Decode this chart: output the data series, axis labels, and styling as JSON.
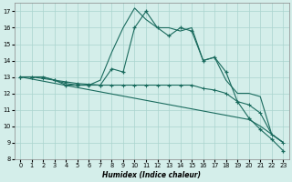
{
  "xlabel": "Humidex (Indice chaleur)",
  "x_values": [
    0,
    1,
    2,
    3,
    4,
    5,
    6,
    7,
    8,
    9,
    10,
    11,
    12,
    13,
    14,
    15,
    16,
    17,
    18,
    19,
    20,
    21,
    22,
    23
  ],
  "line1_jagged": [
    13.0,
    13.0,
    13.0,
    12.8,
    12.5,
    12.5,
    12.5,
    12.5,
    13.5,
    13.3,
    16.0,
    17.0,
    16.0,
    15.5,
    16.0,
    15.8,
    14.0,
    14.2,
    13.3,
    11.5,
    10.5,
    9.8,
    9.2,
    8.5
  ],
  "line2_triangle": [
    13.0,
    13.0,
    13.0,
    12.8,
    12.6,
    12.5,
    12.5,
    12.8,
    14.5,
    16.0,
    17.2,
    16.5,
    16.0,
    16.0,
    15.8,
    16.0,
    14.0,
    14.2,
    12.8,
    12.0,
    12.0,
    11.8,
    9.5,
    9.0
  ],
  "line2_flat": [
    13.0,
    13.0,
    12.9,
    12.8,
    12.7,
    12.6,
    12.55,
    12.5,
    12.5,
    12.5,
    12.5,
    12.5,
    12.5,
    12.5,
    12.5,
    12.5,
    12.3,
    12.2,
    12.0,
    11.5,
    11.3,
    10.8,
    9.5,
    9.0
  ],
  "line3_straight": [
    13.0,
    12.87,
    12.74,
    12.61,
    12.48,
    12.35,
    12.22,
    12.09,
    11.96,
    11.83,
    11.7,
    11.57,
    11.44,
    11.31,
    11.18,
    11.05,
    10.92,
    10.79,
    10.66,
    10.53,
    10.4,
    10.0,
    9.5,
    9.0
  ],
  "ylim": [
    8,
    17.5
  ],
  "xlim": [
    -0.5,
    23.5
  ],
  "yticks": [
    8,
    9,
    10,
    11,
    12,
    13,
    14,
    15,
    16,
    17
  ],
  "xticks": [
    0,
    1,
    2,
    3,
    4,
    5,
    6,
    7,
    8,
    9,
    10,
    11,
    12,
    13,
    14,
    15,
    16,
    17,
    18,
    19,
    20,
    21,
    22,
    23
  ],
  "color": "#1a6b5e",
  "bg_color": "#d4eeea",
  "grid_color": "#aad4ce"
}
